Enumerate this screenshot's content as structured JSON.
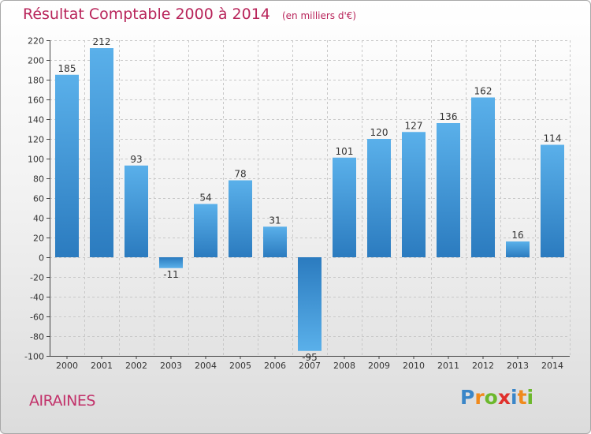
{
  "header": {
    "title": "Résultat Comptable 2000 à 2014",
    "subtitle": "(en milliers d'€)"
  },
  "commune": "AIRAINES",
  "logo": {
    "text": "Proxiti",
    "letters": [
      "P",
      "r",
      "o",
      "x",
      "i",
      "t",
      "i"
    ],
    "colors": [
      "#3a86c8",
      "#f08a1c",
      "#6cb82c",
      "#e0302c",
      "#3a86c8",
      "#f08a1c",
      "#6cb82c"
    ]
  },
  "chart_data": {
    "type": "bar",
    "title": "Résultat Comptable 2000 à 2014",
    "subtitle": "(en milliers d'€)",
    "categories": [
      "2000",
      "2001",
      "2002",
      "2003",
      "2004",
      "2005",
      "2006",
      "2007",
      "2008",
      "2009",
      "2010",
      "2011",
      "2012",
      "2013",
      "2014"
    ],
    "values": [
      185,
      212,
      93,
      -11,
      54,
      78,
      31,
      -95,
      101,
      120,
      127,
      136,
      162,
      16,
      114
    ],
    "labels": [
      "185",
      "212",
      "93",
      "-11",
      "54",
      "78",
      "31",
      "-95",
      "101",
      "120",
      "127",
      "136",
      "162",
      "16",
      "114"
    ],
    "ylim": [
      -100,
      220
    ],
    "yticks": [
      -100,
      -80,
      -60,
      -40,
      -20,
      0,
      20,
      40,
      60,
      80,
      100,
      120,
      140,
      160,
      180,
      200,
      220
    ],
    "grid": true,
    "bar_color_light": "#5ab0ea",
    "bar_color_dark": "#2b7bbf"
  }
}
